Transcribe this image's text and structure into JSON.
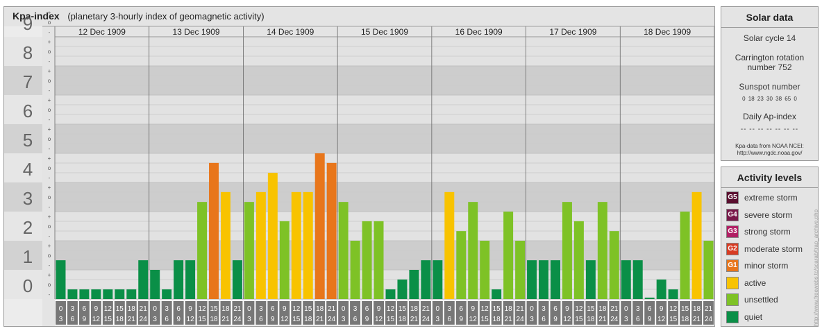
{
  "header": {
    "title": "Kpa-index",
    "subtitle": "(planetary 3-hourly index of geomagnetic activity)"
  },
  "chart_data": {
    "type": "bar",
    "title": "Kpa-index",
    "subtitle": "(planetary 3-hourly index of geomagnetic activity)",
    "ylim": [
      0,
      9
    ],
    "y_ticks": [
      "0",
      "1",
      "2",
      "3",
      "4",
      "5",
      "6",
      "7",
      "8",
      "9"
    ],
    "subdivision_marks": [
      "-",
      "o",
      "+"
    ],
    "days": [
      "12 Dec 1909",
      "13 Dec 1909",
      "14 Dec 1909",
      "15 Dec 1909",
      "16 Dec 1909",
      "17 Dec 1909",
      "18 Dec 1909"
    ],
    "interval_starts": [
      "0",
      "3",
      "6",
      "9",
      "12",
      "15",
      "18",
      "21"
    ],
    "interval_ends": [
      "3",
      "6",
      "9",
      "12",
      "15",
      "18",
      "21",
      "24"
    ],
    "values": [
      [
        1.33,
        0.33,
        0.33,
        0.33,
        0.33,
        0.33,
        0.33,
        1.33
      ],
      [
        1.0,
        0.33,
        1.33,
        1.33,
        3.33,
        4.67,
        3.67,
        1.33
      ],
      [
        3.33,
        3.67,
        4.33,
        2.67,
        3.67,
        3.67,
        5.0,
        4.67
      ],
      [
        3.33,
        2.0,
        2.67,
        2.67,
        0.33,
        0.67,
        1.0,
        1.33
      ],
      [
        1.33,
        3.67,
        2.33,
        3.33,
        2.0,
        0.33,
        3.0,
        2.0
      ],
      [
        1.33,
        1.33,
        1.33,
        3.33,
        2.67,
        1.33,
        3.33,
        2.33
      ],
      [
        1.33,
        1.33,
        0.0,
        0.67,
        0.33,
        3.0,
        3.67,
        2.0
      ]
    ],
    "grid": true
  },
  "solar": {
    "title": "Solar data",
    "cycle": "Solar cycle 14",
    "carrington_1": "Carrington rotation",
    "carrington_2": "number 752",
    "sunspot_title": "Sunspot number",
    "sunspot_values": "0 18 23 30 38 65 0",
    "ap_title": "Daily Ap-index",
    "ap_values": "-- -- -- -- -- -- --",
    "source_1": "Kpa-data from NOAA NCEI:",
    "source_2": "http://www.ngdc.noaa.gov/"
  },
  "activity": {
    "title": "Activity levels",
    "levels": [
      {
        "code": "G5",
        "label": "extreme storm",
        "color": "#5a0f2f"
      },
      {
        "code": "G4",
        "label": "severe storm",
        "color": "#781849"
      },
      {
        "code": "G3",
        "label": "strong storm",
        "color": "#b11f64"
      },
      {
        "code": "G2",
        "label": "moderate storm",
        "color": "#d83c23"
      },
      {
        "code": "G1",
        "label": "minor storm",
        "color": "#e8761b"
      },
      {
        "code": "",
        "label": "active",
        "color": "#f8c300"
      },
      {
        "code": "",
        "label": "unsettled",
        "color": "#7ec226"
      },
      {
        "code": "",
        "label": "quiet",
        "color": "#0a8f47"
      }
    ]
  },
  "colors": {
    "quiet": "#0a8f47",
    "unsettled": "#7ec226",
    "active": "#f8c300",
    "minor_storm": "#e8761b"
  },
  "watermark": "http://www.freewebs.tc/scarab/trap_archive.php"
}
